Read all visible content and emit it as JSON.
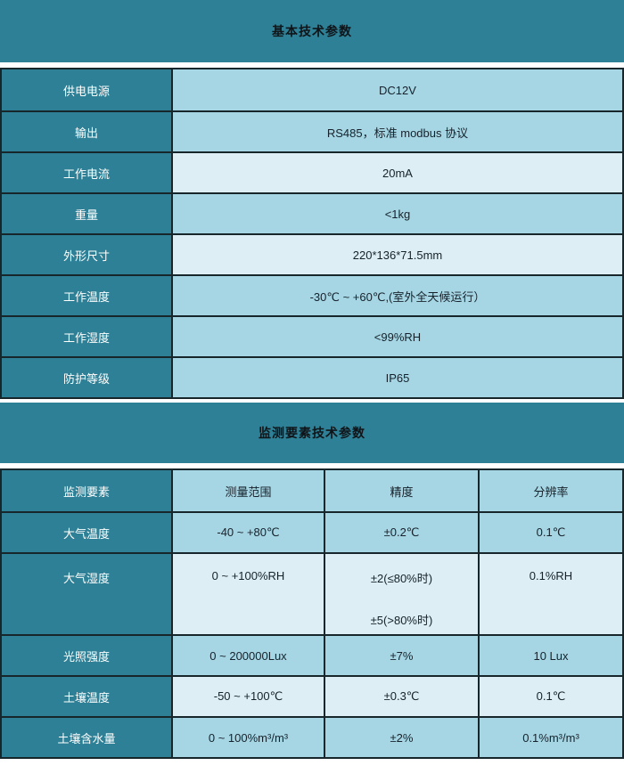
{
  "palette": {
    "teal": "#2E8096",
    "cell_medium": "#A6D6E4",
    "cell_light": "#DDEEF4",
    "border": "#16262B",
    "label_text": "#FFFFFF",
    "dark_text": "#16222B"
  },
  "section1": {
    "title": "基本技术参数",
    "rows": [
      {
        "label": "供电电源",
        "value": "DC12V",
        "shade": "medium"
      },
      {
        "label": "输出",
        "value": "RS485，标准 modbus 协议",
        "shade": "medium"
      },
      {
        "label": "工作电流",
        "value": "20mA",
        "shade": "light"
      },
      {
        "label": "重量",
        "value": "<1kg",
        "shade": "medium"
      },
      {
        "label": "外形尺寸",
        "value": "220*136*71.5mm",
        "shade": "light"
      },
      {
        "label": "工作温度",
        "value": "-30℃ ~ +60℃,(室外全天候运行）",
        "shade": "medium"
      },
      {
        "label": "工作湿度",
        "value": "<99%RH",
        "shade": "medium"
      },
      {
        "label": "防护等级",
        "value": "IP65",
        "shade": "medium"
      }
    ]
  },
  "section2": {
    "title": "监测要素技术参数",
    "header": {
      "element": "监测要素",
      "range": "测量范围",
      "accuracy": "精度",
      "resolution": "分辨率",
      "shade": "medium"
    },
    "rows": [
      {
        "element": "大气温度",
        "range": "-40 ~ +80℃",
        "accuracy": "±0.2℃",
        "resolution": "0.1℃",
        "shade": "medium"
      },
      {
        "element": "大气湿度",
        "range": "0 ~ +100%RH",
        "accuracy": [
          "±2(≤80%时)",
          "±5(>80%时)"
        ],
        "resolution": "0.1%RH",
        "shade": "light"
      },
      {
        "element": "光照强度",
        "range": "0 ~ 200000Lux",
        "accuracy": "±7%",
        "resolution": "10 Lux",
        "shade": "medium"
      },
      {
        "element": "土壤温度",
        "range": "-50 ~ +100℃",
        "accuracy": "±0.3℃",
        "resolution": "0.1℃",
        "shade": "light"
      },
      {
        "element": "土壤含水量",
        "range": "0 ~ 100%m³/m³",
        "accuracy": "±2%",
        "resolution": "0.1%m³/m³",
        "shade": "medium"
      }
    ]
  }
}
